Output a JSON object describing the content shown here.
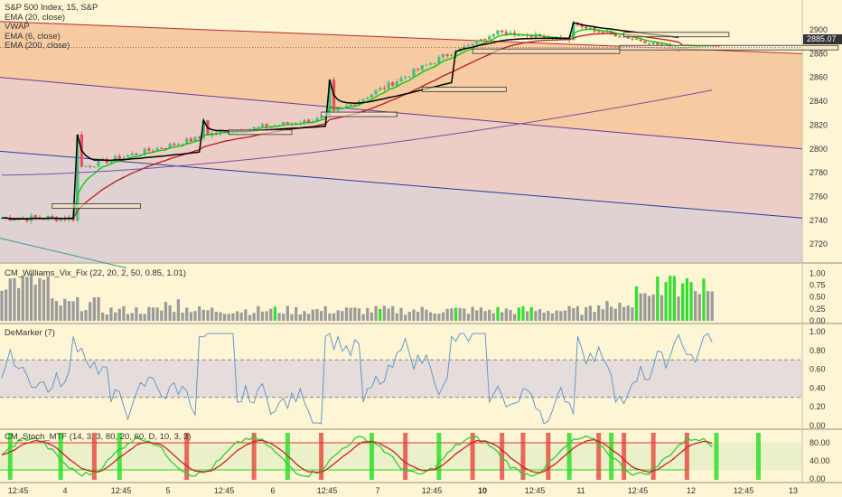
{
  "main_legend": {
    "title": "S&P 500 Index, 15, S&P",
    "lines": [
      "EMA (20, close)",
      "VWAP",
      "EMA (6, close)",
      "EMA (200, close)"
    ]
  },
  "last_price": "2885.07",
  "panels": {
    "vix": {
      "label": "CM_Williams_Vix_Fix (22, 20, 2, 50, 0.85, 1.01)"
    },
    "demarker": {
      "label": "DeMarker (7)"
    },
    "stoch": {
      "label": "CM_Stoch_MTF (14, 3, 3, 80, 20, 60, D, 10, 3, 3)"
    }
  },
  "colors": {
    "background": "#fdf5d3",
    "candle_up": "#53b987",
    "candle_down": "#eb4d5c",
    "ema6": "#00cc00",
    "ema20": "#b71c1c",
    "vwap": "#000000",
    "ema200": "#7b4fa0",
    "vix_bar": "#9a9a9a",
    "vix_high": "#33dd33",
    "demarker_line": "#5b8fc9",
    "stoch_fast": "#33cc33",
    "stoch_slow": "#cc2222",
    "stoch_band_red": "#e53935",
    "stoch_band_green": "#22dd22"
  },
  "chart_data": [
    {
      "type": "candlestick",
      "title": "S&P 500 Index, 15, S&P",
      "ylim": [
        2705,
        2925
      ],
      "y_ticks": [
        2720,
        2740,
        2760,
        2780,
        2800,
        2820,
        2840,
        2860,
        2880,
        2900
      ],
      "x_ticks": [
        "12:45",
        "4",
        "12:45",
        "5",
        "12:45",
        "6",
        "12:45",
        "7",
        "12:45",
        "10",
        "12:45",
        "11",
        "12:45",
        "12",
        "12:45",
        "13"
      ],
      "last_price": 2885.07,
      "session_levels": [
        {
          "day": "4",
          "open": 2744,
          "close": 2782,
          "high": 2784,
          "low": 2733
        },
        {
          "day": "5",
          "open": 2784,
          "close": 2810,
          "high": 2818,
          "low": 2780
        },
        {
          "day": "6",
          "open": 2812,
          "close": 2826,
          "high": 2831,
          "low": 2808
        },
        {
          "day": "7",
          "open": 2828,
          "close": 2883,
          "high": 2888,
          "low": 2826
        },
        {
          "day": "10",
          "open": 2882,
          "close": 2898,
          "high": 2904,
          "low": 2879
        },
        {
          "day": "11",
          "open": 2906,
          "close": 2886,
          "high": 2909,
          "low": 2879
        }
      ],
      "series_names": [
        "EMA (20, close)",
        "VWAP",
        "EMA (6, close)",
        "EMA (200, close)"
      ]
    },
    {
      "type": "bar",
      "title": "CM_Williams_Vix_Fix (22, 20, 2, 50, 0.85, 1.01)",
      "ylim": [
        0,
        1.1
      ],
      "y_ticks": [
        "0.00",
        "0.25",
        "0.50",
        "0.75",
        "1.00"
      ]
    },
    {
      "type": "line",
      "title": "DeMarker (7)",
      "ylim": [
        0,
        1.0
      ],
      "y_ticks": [
        "0.00",
        "0.20",
        "0.40",
        "0.60",
        "0.80",
        "1.00"
      ],
      "bands": [
        0.3,
        0.7
      ]
    },
    {
      "type": "line",
      "title": "CM_Stoch_MTF (14, 3, 3, 80, 20, 60, D, 10, 3, 3)",
      "ylim": [
        0,
        100
      ],
      "y_ticks": [
        "0.00",
        "40.00",
        "80.00"
      ],
      "levels": [
        20,
        80
      ]
    }
  ]
}
